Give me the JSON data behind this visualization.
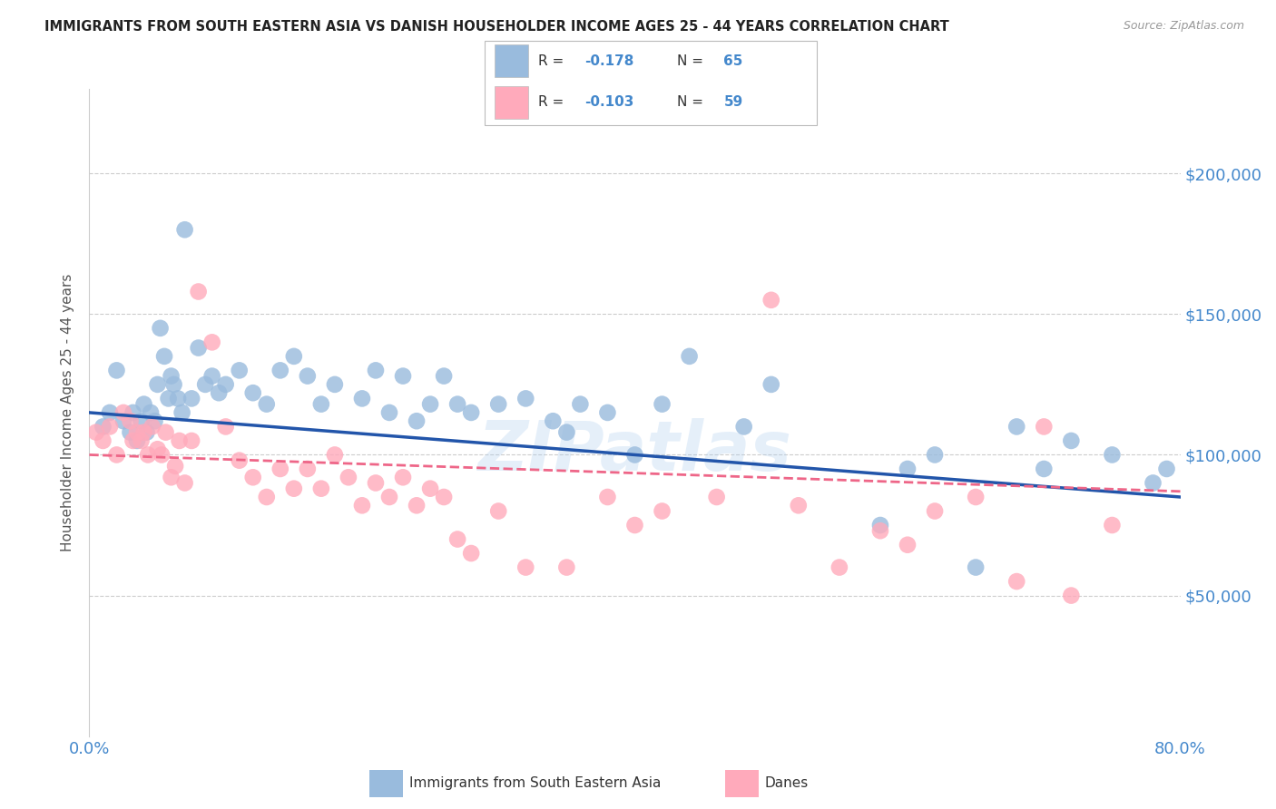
{
  "title": "IMMIGRANTS FROM SOUTH EASTERN ASIA VS DANISH HOUSEHOLDER INCOME AGES 25 - 44 YEARS CORRELATION CHART",
  "source": "Source: ZipAtlas.com",
  "ylabel": "Householder Income Ages 25 - 44 years",
  "legend_label1": "Immigrants from South Eastern Asia",
  "legend_label2": "Danes",
  "R1": -0.178,
  "N1": 65,
  "R2": -0.103,
  "N2": 59,
  "xlim": [
    0.0,
    80.0
  ],
  "ylim": [
    0,
    230000
  ],
  "yticks": [
    0,
    50000,
    100000,
    150000,
    200000
  ],
  "ytick_labels": [
    "",
    "$50,000",
    "$100,000",
    "$150,000",
    "$200,000"
  ],
  "xticks": [
    0.0,
    16.0,
    32.0,
    48.0,
    64.0,
    80.0
  ],
  "xtick_labels": [
    "0.0%",
    "",
    "",
    "",
    "",
    "80.0%"
  ],
  "color_blue": "#99BBDD",
  "color_pink": "#FFAABB",
  "color_blue_line": "#2255AA",
  "color_pink_line": "#EE6688",
  "color_axis_label": "#4488CC",
  "watermark": "ZIPatlas",
  "blue_x": [
    1.0,
    1.5,
    2.0,
    2.5,
    3.0,
    3.2,
    3.5,
    3.8,
    4.0,
    4.2,
    4.5,
    4.8,
    5.0,
    5.2,
    5.5,
    5.8,
    6.0,
    6.2,
    6.5,
    6.8,
    7.0,
    7.5,
    8.0,
    8.5,
    9.0,
    9.5,
    10.0,
    11.0,
    12.0,
    13.0,
    14.0,
    15.0,
    16.0,
    17.0,
    18.0,
    20.0,
    21.0,
    22.0,
    23.0,
    24.0,
    25.0,
    26.0,
    27.0,
    28.0,
    30.0,
    32.0,
    34.0,
    35.0,
    36.0,
    38.0,
    40.0,
    42.0,
    44.0,
    48.0,
    50.0,
    58.0,
    60.0,
    62.0,
    65.0,
    68.0,
    70.0,
    72.0,
    75.0,
    78.0,
    79.0
  ],
  "blue_y": [
    110000,
    115000,
    130000,
    112000,
    108000,
    115000,
    105000,
    112000,
    118000,
    108000,
    115000,
    112000,
    125000,
    145000,
    135000,
    120000,
    128000,
    125000,
    120000,
    115000,
    180000,
    120000,
    138000,
    125000,
    128000,
    122000,
    125000,
    130000,
    122000,
    118000,
    130000,
    135000,
    128000,
    118000,
    125000,
    120000,
    130000,
    115000,
    128000,
    112000,
    118000,
    128000,
    118000,
    115000,
    118000,
    120000,
    112000,
    108000,
    118000,
    115000,
    100000,
    118000,
    135000,
    110000,
    125000,
    75000,
    95000,
    100000,
    60000,
    110000,
    95000,
    105000,
    100000,
    90000,
    95000
  ],
  "pink_x": [
    0.5,
    1.0,
    1.5,
    2.0,
    2.5,
    3.0,
    3.2,
    3.5,
    3.8,
    4.0,
    4.3,
    4.6,
    5.0,
    5.3,
    5.6,
    6.0,
    6.3,
    6.6,
    7.0,
    7.5,
    8.0,
    9.0,
    10.0,
    11.0,
    12.0,
    13.0,
    14.0,
    15.0,
    16.0,
    17.0,
    18.0,
    19.0,
    20.0,
    21.0,
    22.0,
    23.0,
    24.0,
    25.0,
    26.0,
    27.0,
    28.0,
    30.0,
    32.0,
    35.0,
    38.0,
    40.0,
    42.0,
    46.0,
    50.0,
    52.0,
    55.0,
    58.0,
    60.0,
    62.0,
    65.0,
    68.0,
    70.0,
    72.0,
    75.0
  ],
  "pink_y": [
    108000,
    105000,
    110000,
    100000,
    115000,
    112000,
    105000,
    108000,
    105000,
    108000,
    100000,
    110000,
    102000,
    100000,
    108000,
    92000,
    96000,
    105000,
    90000,
    105000,
    158000,
    140000,
    110000,
    98000,
    92000,
    85000,
    95000,
    88000,
    95000,
    88000,
    100000,
    92000,
    82000,
    90000,
    85000,
    92000,
    82000,
    88000,
    85000,
    70000,
    65000,
    80000,
    60000,
    60000,
    85000,
    75000,
    80000,
    85000,
    155000,
    82000,
    60000,
    73000,
    68000,
    80000,
    85000,
    55000,
    110000,
    50000,
    75000
  ]
}
